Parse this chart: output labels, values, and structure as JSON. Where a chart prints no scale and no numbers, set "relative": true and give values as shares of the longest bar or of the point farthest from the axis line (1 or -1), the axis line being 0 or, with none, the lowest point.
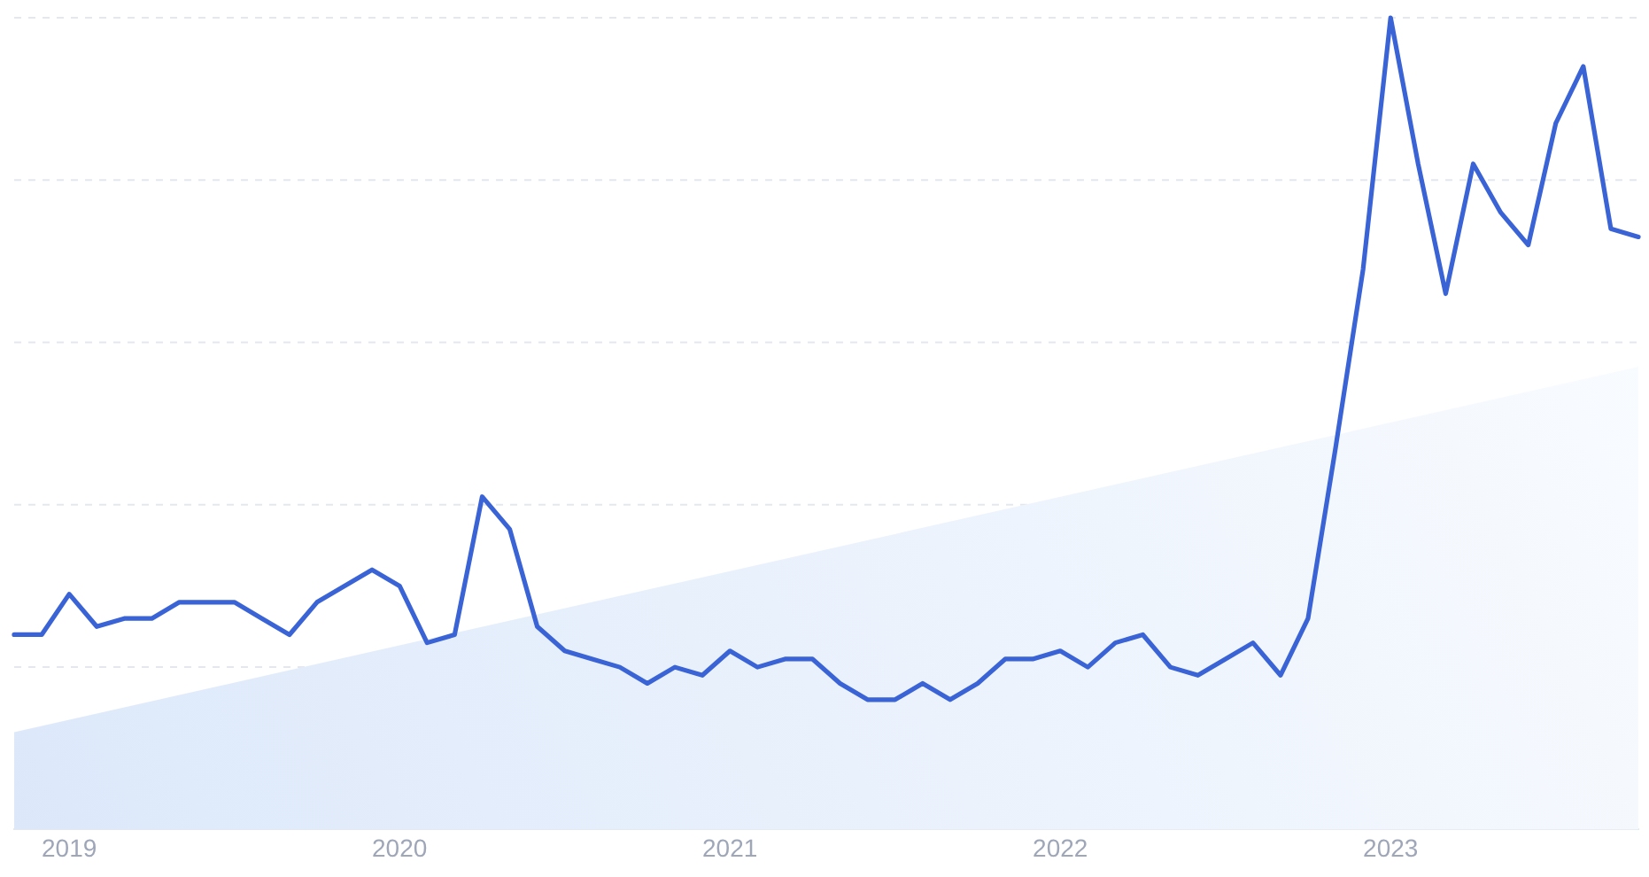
{
  "chart_data": {
    "type": "line",
    "relative": true,
    "grid": "y",
    "x": [
      "2018-11",
      "2018-12",
      "2019-01",
      "2019-02",
      "2019-03",
      "2019-04",
      "2019-05",
      "2019-06",
      "2019-07",
      "2019-08",
      "2019-09",
      "2019-10",
      "2019-11",
      "2019-12",
      "2020-01",
      "2020-02",
      "2020-03",
      "2020-04",
      "2020-05",
      "2020-06",
      "2020-07",
      "2020-08",
      "2020-09",
      "2020-10",
      "2020-11",
      "2020-12",
      "2021-01",
      "2021-02",
      "2021-03",
      "2021-04",
      "2021-05",
      "2021-06",
      "2021-07",
      "2021-08",
      "2021-09",
      "2021-10",
      "2021-11",
      "2021-12",
      "2022-01",
      "2022-02",
      "2022-03",
      "2022-04",
      "2022-05",
      "2022-06",
      "2022-07",
      "2022-08",
      "2022-09",
      "2022-10",
      "2022-11",
      "2022-12",
      "2023-01",
      "2023-02",
      "2023-03",
      "2023-04",
      "2023-05",
      "2023-06",
      "2023-07",
      "2023-08",
      "2023-09",
      "2023-10"
    ],
    "series": [
      {
        "type": "area",
        "color": "#dce8fa",
        "x": [
          "2018-11",
          "2023-10"
        ],
        "values": [
          0.12,
          0.57
        ]
      },
      {
        "color": "#3a63d6",
        "values": [
          0.24,
          0.24,
          0.29,
          0.25,
          0.26,
          0.26,
          0.28,
          0.28,
          0.28,
          0.26,
          0.24,
          0.28,
          0.3,
          0.32,
          0.3,
          0.23,
          0.24,
          0.41,
          0.37,
          0.25,
          0.22,
          0.21,
          0.2,
          0.18,
          0.2,
          0.19,
          0.22,
          0.2,
          0.21,
          0.21,
          0.18,
          0.16,
          0.16,
          0.18,
          0.16,
          0.18,
          0.21,
          0.21,
          0.22,
          0.2,
          0.23,
          0.24,
          0.2,
          0.19,
          0.21,
          0.23,
          0.19,
          0.26,
          0.47,
          0.69,
          1,
          0.82,
          0.66,
          0.82,
          0.76,
          0.72,
          0.87,
          0.94,
          0.74,
          0.73
        ]
      }
    ],
    "xlim": [
      "2018-11",
      "2023-10"
    ],
    "xticks": [
      "2019",
      "2020",
      "2021",
      "2022",
      "2023"
    ]
  }
}
